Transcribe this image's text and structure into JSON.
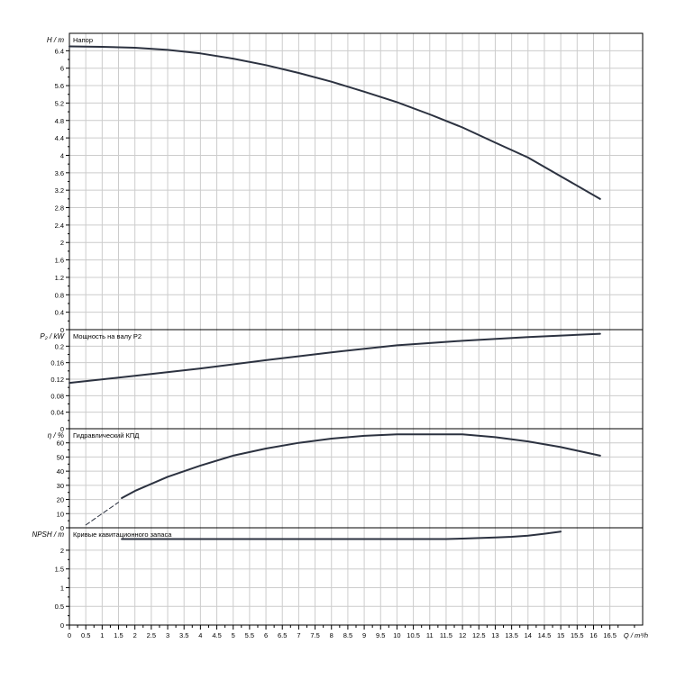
{
  "chart_data": [
    {
      "type": "line",
      "panel": "head",
      "title": "Напор",
      "ylabel": "H / m",
      "ylim": [
        0,
        6.8
      ],
      "yticks": [
        0,
        0.4,
        0.8,
        1.2,
        1.6,
        2,
        2.4,
        2.8,
        3.2,
        3.6,
        4,
        4.4,
        4.8,
        5.2,
        5.6,
        6,
        6.4
      ],
      "ytick_labels": [
        "0",
        "0.4",
        "0.8",
        "1.2",
        "1.6",
        "2",
        "2.4",
        "2.8",
        "3.2",
        "3.6",
        "4",
        "4.4",
        "4.8",
        "5.2",
        "5.6",
        "6",
        "6.4"
      ],
      "series": [
        {
          "style": "solid",
          "x": [
            0,
            1,
            2,
            3,
            4,
            5,
            6,
            7,
            8,
            9,
            10,
            11,
            12,
            13,
            14,
            15,
            16.2
          ],
          "y": [
            6.5,
            6.49,
            6.47,
            6.42,
            6.34,
            6.22,
            6.07,
            5.89,
            5.69,
            5.46,
            5.22,
            4.94,
            4.64,
            4.29,
            3.95,
            3.52,
            3.0
          ]
        }
      ]
    },
    {
      "type": "line",
      "panel": "power",
      "title": "Мощность на валу P2",
      "ylabel": "P₂ / kW",
      "ylim": [
        0,
        0.24
      ],
      "yticks": [
        0,
        0.04,
        0.08,
        0.12,
        0.16,
        0.2
      ],
      "ytick_labels": [
        "0",
        "0.04",
        "0.08",
        "0.12",
        "0.16",
        "0.2"
      ],
      "series": [
        {
          "style": "solid",
          "x": [
            0,
            2,
            4,
            6,
            8,
            10,
            12,
            14,
            16.2
          ],
          "y": [
            0.111,
            0.128,
            0.146,
            0.166,
            0.185,
            0.202,
            0.213,
            0.222,
            0.23
          ]
        }
      ]
    },
    {
      "type": "line",
      "panel": "efficiency",
      "title": "Гидравлический КПД",
      "ylabel": "η / %",
      "ylim": [
        0,
        70
      ],
      "yticks": [
        0,
        10,
        20,
        30,
        40,
        50,
        60
      ],
      "ytick_labels": [
        "0",
        "10",
        "20",
        "30",
        "40",
        "50",
        "60"
      ],
      "series": [
        {
          "style": "dashed",
          "x": [
            0.5,
            1.0,
            1.5
          ],
          "y": [
            2,
            10,
            18
          ]
        },
        {
          "style": "solid",
          "x": [
            1.6,
            2,
            3,
            4,
            5,
            6,
            7,
            8,
            9,
            10,
            11,
            12,
            13,
            14,
            15,
            16.2
          ],
          "y": [
            21,
            26,
            36,
            44,
            51,
            56,
            60,
            63,
            65,
            66,
            66,
            66,
            64,
            61,
            57,
            51
          ]
        }
      ]
    },
    {
      "type": "line",
      "panel": "npsh",
      "title": "Кривые кавитационного запаса",
      "ylabel": "NPSH / m",
      "ylim": [
        0,
        2.6
      ],
      "yticks": [
        0,
        0.5,
        1,
        1.5,
        2
      ],
      "ytick_labels": [
        "0",
        "0.5",
        "1",
        "1.5",
        "2"
      ],
      "series": [
        {
          "style": "solid",
          "x": [
            1.6,
            11.5,
            12,
            13,
            13.5,
            14,
            14.5,
            15
          ],
          "y": [
            2.3,
            2.3,
            2.31,
            2.34,
            2.36,
            2.39,
            2.44,
            2.5
          ]
        }
      ]
    }
  ],
  "x_axis": {
    "xlabel": "Q / m³/h",
    "xlim": [
      0,
      17.5
    ],
    "ticks": [
      0,
      0.5,
      1,
      1.5,
      2,
      2.5,
      3,
      3.5,
      4,
      4.5,
      5,
      5.5,
      6,
      6.5,
      7,
      7.5,
      8,
      8.5,
      9,
      9.5,
      10,
      10.5,
      11,
      11.5,
      12,
      12.5,
      13,
      13.5,
      14,
      14.5,
      15,
      15.5,
      16,
      16.5
    ],
    "tick_labels": [
      "0",
      "0.5",
      "1",
      "1.5",
      "2",
      "2.5",
      "3",
      "3.5",
      "4",
      "4.5",
      "5",
      "5.5",
      "6",
      "6.5",
      "7",
      "7.5",
      "8",
      "8.5",
      "9",
      "9.5",
      "10",
      "10.5",
      "11",
      "11.5",
      "12",
      "12.5",
      "13",
      "13.5",
      "14",
      "14.5",
      "15",
      "15.5",
      "16",
      "16.5"
    ]
  },
  "colors": {
    "curve": "#2c3240",
    "grid": "#cccccc",
    "frame": "#000000",
    "text": "#000000"
  }
}
